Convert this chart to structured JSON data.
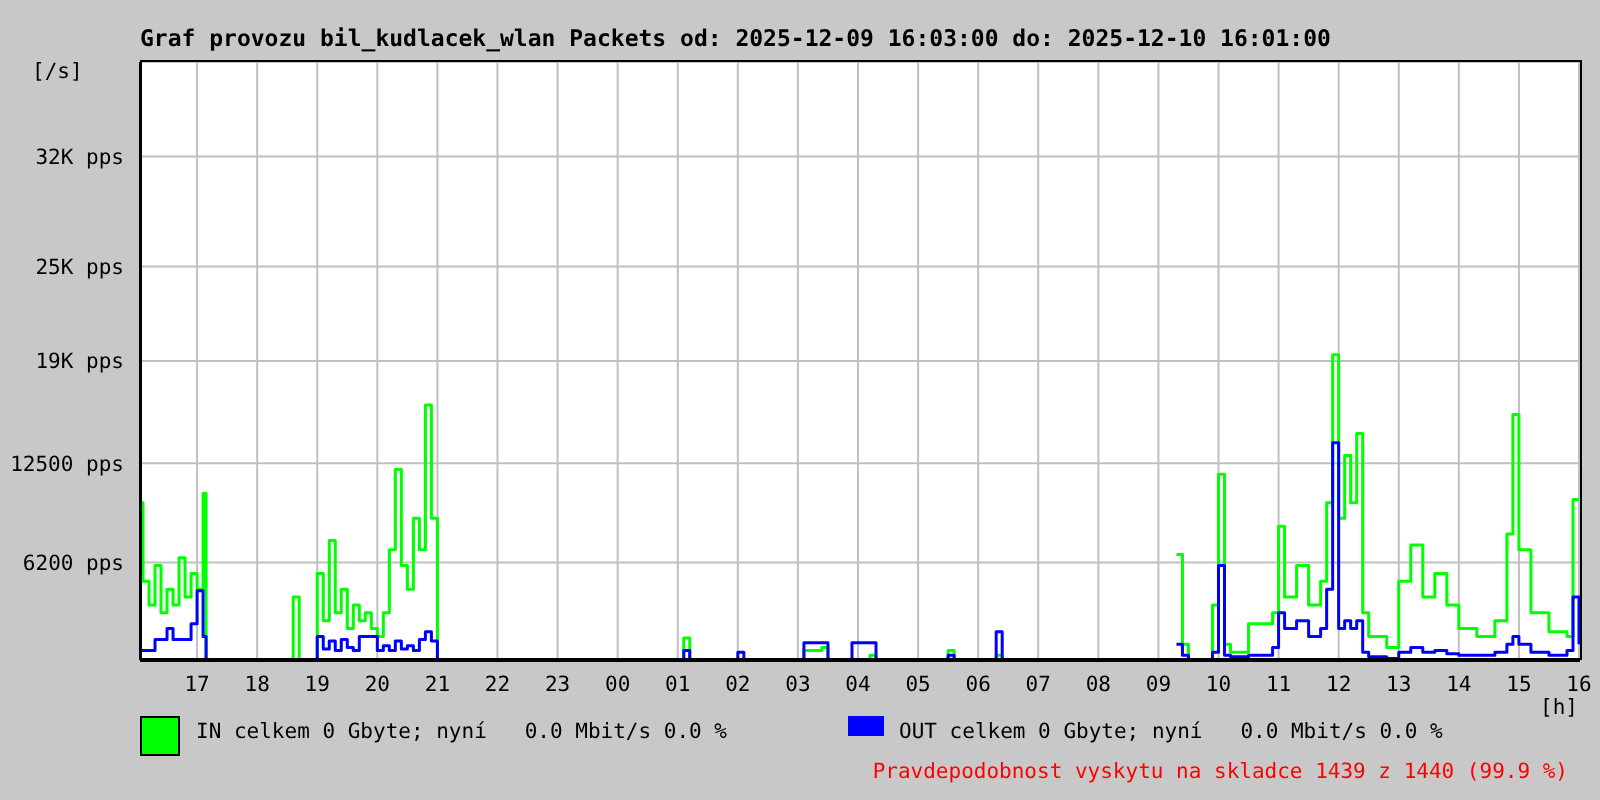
{
  "chart_data": {
    "type": "step",
    "title": "Graf provozu bil_kudlacek_wlan Packets od: 2025-12-09 16:03:00 do: 2025-12-10 16:01:00",
    "ylabel": "[/s]",
    "xlabel": "[h]",
    "annotations": [
      "Pravdepodobnost vyskytu na skladce 1439 z 1440 (99.9 %)"
    ],
    "x": [
      "2025-12-09T16:03",
      "2025-12-09T16:06",
      "2025-12-09T16:12",
      "2025-12-09T16:18",
      "2025-12-09T16:24",
      "2025-12-09T16:30",
      "2025-12-09T16:36",
      "2025-12-09T16:42",
      "2025-12-09T16:48",
      "2025-12-09T16:54",
      "2025-12-09T17:00",
      "2025-12-09T17:06",
      "2025-12-09T17:09",
      "2025-12-09T18:30",
      "2025-12-09T18:36",
      "2025-12-09T18:42",
      "2025-12-09T18:54",
      "2025-12-09T19:00",
      "2025-12-09T19:06",
      "2025-12-09T19:12",
      "2025-12-09T19:18",
      "2025-12-09T19:24",
      "2025-12-09T19:30",
      "2025-12-09T19:36",
      "2025-12-09T19:42",
      "2025-12-09T19:48",
      "2025-12-09T19:54",
      "2025-12-09T20:00",
      "2025-12-09T20:06",
      "2025-12-09T20:12",
      "2025-12-09T20:18",
      "2025-12-09T20:24",
      "2025-12-09T20:30",
      "2025-12-09T20:36",
      "2025-12-09T20:42",
      "2025-12-09T20:48",
      "2025-12-09T20:54",
      "2025-12-09T21:00",
      "2025-12-10T01:00",
      "2025-12-10T01:06",
      "2025-12-10T01:12",
      "2025-12-10T02:00",
      "2025-12-10T02:06",
      "2025-12-10T03:00",
      "2025-12-10T03:06",
      "2025-12-10T03:24",
      "2025-12-10T03:30",
      "2025-12-10T03:48",
      "2025-12-10T03:54",
      "2025-12-10T04:12",
      "2025-12-10T04:18",
      "2025-12-10T05:30",
      "2025-12-10T05:36",
      "2025-12-10T06:18",
      "2025-12-10T06:24",
      "2025-12-10T09:00",
      "2025-12-10T09:18",
      "2025-12-10T09:24",
      "2025-12-10T09:30",
      "2025-12-10T09:54",
      "2025-12-10T10:00",
      "2025-12-10T10:06",
      "2025-12-10T10:12",
      "2025-12-10T10:30",
      "2025-12-10T10:54",
      "2025-12-10T11:00",
      "2025-12-10T11:06",
      "2025-12-10T11:18",
      "2025-12-10T11:30",
      "2025-12-10T11:42",
      "2025-12-10T11:48",
      "2025-12-10T11:54",
      "2025-12-10T12:00",
      "2025-12-10T12:06",
      "2025-12-10T12:12",
      "2025-12-10T12:18",
      "2025-12-10T12:24",
      "2025-12-10T12:30",
      "2025-12-10T12:48",
      "2025-12-10T13:00",
      "2025-12-10T13:12",
      "2025-12-10T13:24",
      "2025-12-10T13:36",
      "2025-12-10T13:48",
      "2025-12-10T14:00",
      "2025-12-10T14:18",
      "2025-12-10T14:36",
      "2025-12-10T14:48",
      "2025-12-10T14:54",
      "2025-12-10T15:00",
      "2025-12-10T15:12",
      "2025-12-10T15:30",
      "2025-12-10T15:48",
      "2025-12-10T15:54",
      "2025-12-10T16:00"
    ],
    "series": [
      {
        "name": "IN celkem 0 Gbyte; nyní   0.0 Mbit/s 0.0 %",
        "color": "#00ff00",
        "values": [
          10000,
          5000,
          3500,
          6000,
          3000,
          4500,
          3500,
          6500,
          4000,
          5500,
          4500,
          10600,
          0,
          0,
          4000,
          0,
          0,
          5500,
          2500,
          7600,
          3000,
          4500,
          2000,
          3500,
          2500,
          3000,
          2000,
          1500,
          3000,
          7000,
          12100,
          6000,
          4500,
          9000,
          7000,
          16200,
          9000,
          0,
          0,
          1400,
          0,
          null,
          0,
          0,
          600,
          800,
          0,
          0,
          0,
          300,
          0,
          600,
          0,
          300,
          0,
          null,
          6700,
          1000,
          0,
          3500,
          11800,
          1000,
          500,
          2300,
          3000,
          8500,
          4000,
          6000,
          3500,
          5000,
          10000,
          19400,
          9000,
          13000,
          10000,
          14400,
          3000,
          1500,
          800,
          5000,
          7300,
          4000,
          5500,
          3500,
          2000,
          1500,
          2500,
          8000,
          15600,
          7000,
          3000,
          1800,
          1500,
          10200,
          10200
        ]
      },
      {
        "name": "OUT celkem 0 Gbyte; nyní   0.0 Mbit/s 0.0 %",
        "color": "#0000ff",
        "values": [
          600,
          600,
          600,
          1300,
          1300,
          2000,
          1300,
          1300,
          1300,
          2300,
          4400,
          1500,
          0,
          null,
          null,
          null,
          0,
          1500,
          700,
          1200,
          600,
          1300,
          800,
          600,
          1500,
          1500,
          1500,
          600,
          900,
          600,
          1200,
          700,
          900,
          600,
          1300,
          1800,
          1200,
          0,
          0,
          600,
          0,
          500,
          0,
          0,
          1100,
          1100,
          0,
          0,
          1100,
          1100,
          0,
          300,
          0,
          1800,
          0,
          null,
          1000,
          300,
          0,
          500,
          6000,
          300,
          200,
          300,
          800,
          3000,
          2000,
          2500,
          1500,
          2000,
          4500,
          13800,
          2000,
          2500,
          2000,
          2500,
          500,
          200,
          100,
          500,
          800,
          500,
          600,
          400,
          300,
          300,
          500,
          1000,
          1500,
          1000,
          500,
          300,
          600,
          4000,
          1000
        ]
      }
    ],
    "xlim": [
      "2025-12-09T16:03",
      "2025-12-10T16:01"
    ],
    "xticks": [
      {
        "value": "2025-12-09T17:00",
        "label": "17"
      },
      {
        "value": "2025-12-09T18:00",
        "label": "18"
      },
      {
        "value": "2025-12-09T19:00",
        "label": "19"
      },
      {
        "value": "2025-12-09T20:00",
        "label": "20"
      },
      {
        "value": "2025-12-09T21:00",
        "label": "21"
      },
      {
        "value": "2025-12-09T22:00",
        "label": "22"
      },
      {
        "value": "2025-12-09T23:00",
        "label": "23"
      },
      {
        "value": "2025-12-10T00:00",
        "label": "00"
      },
      {
        "value": "2025-12-10T01:00",
        "label": "01"
      },
      {
        "value": "2025-12-10T02:00",
        "label": "02"
      },
      {
        "value": "2025-12-10T03:00",
        "label": "03"
      },
      {
        "value": "2025-12-10T04:00",
        "label": "04"
      },
      {
        "value": "2025-12-10T05:00",
        "label": "05"
      },
      {
        "value": "2025-12-10T06:00",
        "label": "06"
      },
      {
        "value": "2025-12-10T07:00",
        "label": "07"
      },
      {
        "value": "2025-12-10T08:00",
        "label": "08"
      },
      {
        "value": "2025-12-10T09:00",
        "label": "09"
      },
      {
        "value": "2025-12-10T10:00",
        "label": "10"
      },
      {
        "value": "2025-12-10T11:00",
        "label": "11"
      },
      {
        "value": "2025-12-10T12:00",
        "label": "12"
      },
      {
        "value": "2025-12-10T13:00",
        "label": "13"
      },
      {
        "value": "2025-12-10T14:00",
        "label": "14"
      },
      {
        "value": "2025-12-10T15:00",
        "label": "15"
      },
      {
        "value": "2025-12-10T16:00",
        "label": "16"
      }
    ],
    "ylim": [
      0,
      38000
    ],
    "yticks": [
      {
        "value": 6200,
        "label": "6200 pps"
      },
      {
        "value": 12500,
        "label": "12500 pps"
      },
      {
        "value": 19000,
        "label": "19K pps"
      },
      {
        "value": 25000,
        "label": "25K pps"
      },
      {
        "value": 32000,
        "label": "32K pps"
      }
    ],
    "grid": true,
    "legend": "bottom",
    "marker": "none",
    "line_style": "solid"
  }
}
